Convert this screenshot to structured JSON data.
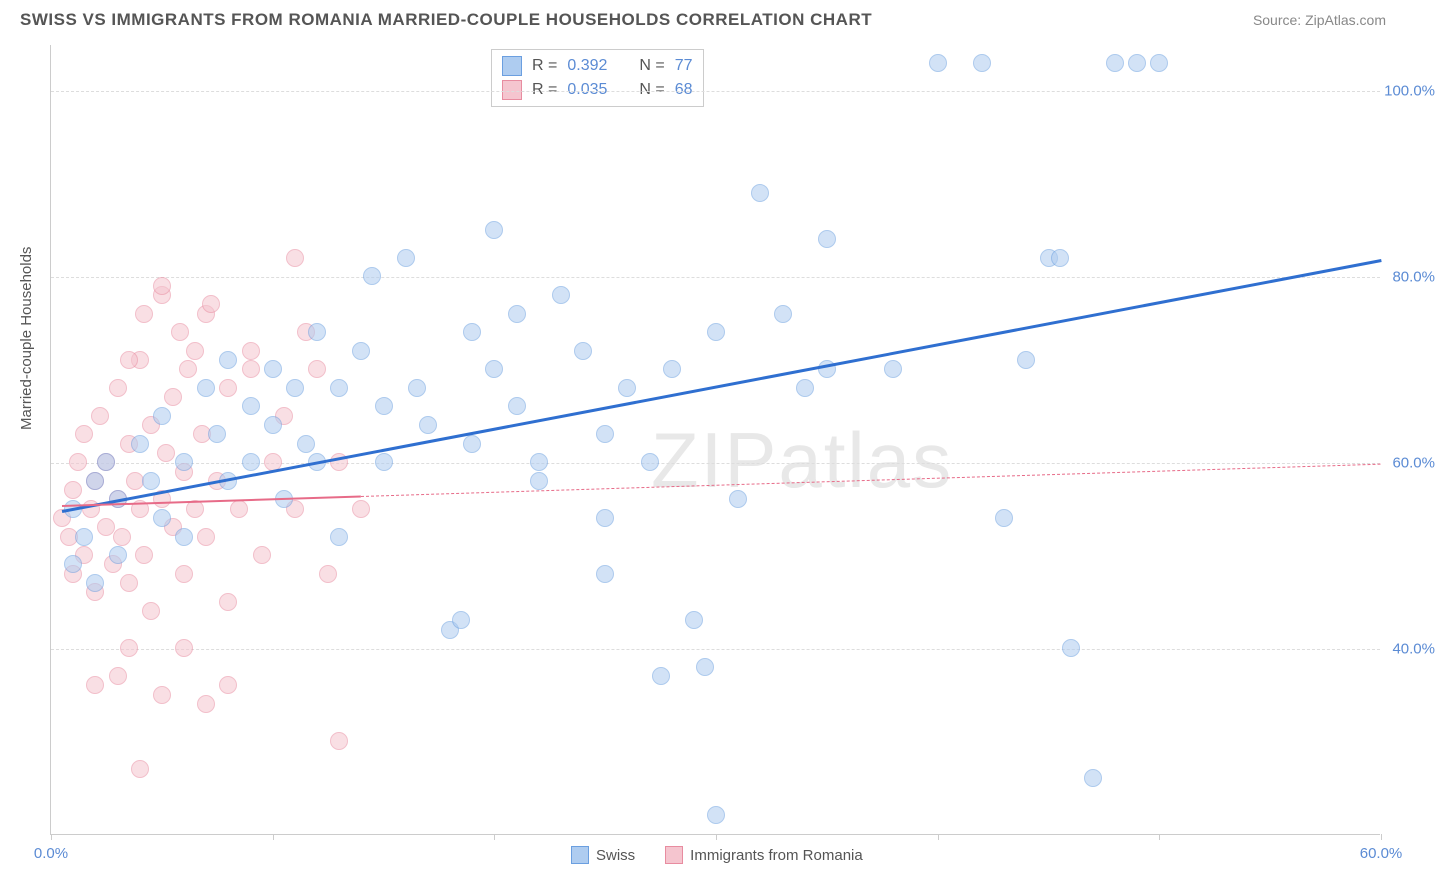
{
  "title": "SWISS VS IMMIGRANTS FROM ROMANIA MARRIED-COUPLE HOUSEHOLDS CORRELATION CHART",
  "source": "Source: ZipAtlas.com",
  "ylabel": "Married-couple Households",
  "watermark": "ZIPatlas",
  "chart": {
    "type": "scatter",
    "background_color": "#ffffff",
    "grid_color": "#dddddd",
    "border_color": "#cccccc",
    "xlim": [
      0,
      60
    ],
    "ylim": [
      20,
      105
    ],
    "x_ticks": [
      0,
      10,
      20,
      30,
      40,
      50,
      60
    ],
    "x_tick_labels": {
      "0": "0.0%",
      "60": "60.0%"
    },
    "y_gridlines": [
      40,
      60,
      80,
      100
    ],
    "y_tick_labels": [
      "40.0%",
      "60.0%",
      "80.0%",
      "100.0%"
    ],
    "tick_label_color": "#5b8bd4",
    "axis_label_color": "#555555",
    "axis_label_fontsize": 15,
    "tick_fontsize": 15,
    "marker_radius": 9,
    "marker_opacity": 0.55,
    "series": [
      {
        "name": "Swiss",
        "fill": "#aeccf0",
        "stroke": "#6b9fe0",
        "R": "0.392",
        "N": "77",
        "trend": {
          "x1": 0.5,
          "y1": 55,
          "x2": 60,
          "y2": 82,
          "color": "#2f6fd0",
          "width": 2.5,
          "solid_until_x": 60
        },
        "points": [
          [
            1,
            55
          ],
          [
            1,
            49
          ],
          [
            1.5,
            52
          ],
          [
            2,
            58
          ],
          [
            2,
            47
          ],
          [
            2.5,
            60
          ],
          [
            3,
            56
          ],
          [
            3,
            50
          ],
          [
            4,
            62
          ],
          [
            4.5,
            58
          ],
          [
            5,
            54
          ],
          [
            5,
            65
          ],
          [
            6,
            60
          ],
          [
            6,
            52
          ],
          [
            7,
            68
          ],
          [
            7.5,
            63
          ],
          [
            8,
            58
          ],
          [
            8,
            71
          ],
          [
            9,
            66
          ],
          [
            9,
            60
          ],
          [
            10,
            70
          ],
          [
            10,
            64
          ],
          [
            10.5,
            56
          ],
          [
            11,
            68
          ],
          [
            11.5,
            62
          ],
          [
            12,
            74
          ],
          [
            12,
            60
          ],
          [
            13,
            68
          ],
          [
            13,
            52
          ],
          [
            14,
            72
          ],
          [
            14.5,
            80
          ],
          [
            15,
            66
          ],
          [
            15,
            60
          ],
          [
            16,
            82
          ],
          [
            16.5,
            68
          ],
          [
            17,
            64
          ],
          [
            18,
            42
          ],
          [
            18.5,
            43
          ],
          [
            19,
            74
          ],
          [
            19,
            62
          ],
          [
            20,
            70
          ],
          [
            20,
            85
          ],
          [
            21,
            76
          ],
          [
            21,
            66
          ],
          [
            22,
            60
          ],
          [
            22,
            58
          ],
          [
            23,
            78
          ],
          [
            24,
            72
          ],
          [
            25,
            63
          ],
          [
            25,
            54
          ],
          [
            25,
            48
          ],
          [
            26,
            68
          ],
          [
            27,
            60
          ],
          [
            27.5,
            37
          ],
          [
            28,
            70
          ],
          [
            29,
            43
          ],
          [
            29.5,
            38
          ],
          [
            30,
            74
          ],
          [
            30,
            22
          ],
          [
            31,
            56
          ],
          [
            32,
            89
          ],
          [
            33,
            76
          ],
          [
            34,
            68
          ],
          [
            35,
            70
          ],
          [
            35,
            84
          ],
          [
            38,
            70
          ],
          [
            40,
            103
          ],
          [
            42,
            103
          ],
          [
            43,
            54
          ],
          [
            44,
            71
          ],
          [
            45,
            82
          ],
          [
            45.5,
            82
          ],
          [
            46,
            40
          ],
          [
            47,
            26
          ],
          [
            48,
            103
          ],
          [
            49,
            103
          ],
          [
            50,
            103
          ]
        ]
      },
      {
        "name": "Immigrants from Romania",
        "fill": "#f5c5cf",
        "stroke": "#e88ca0",
        "R": "0.035",
        "N": "68",
        "trend": {
          "x1": 0.5,
          "y1": 55.5,
          "x2": 60,
          "y2": 60,
          "color": "#e76b88",
          "width": 2.2,
          "solid_until_x": 14
        },
        "points": [
          [
            0.5,
            54
          ],
          [
            0.8,
            52
          ],
          [
            1,
            48
          ],
          [
            1,
            57
          ],
          [
            1.2,
            60
          ],
          [
            1.5,
            50
          ],
          [
            1.5,
            63
          ],
          [
            1.8,
            55
          ],
          [
            2,
            58
          ],
          [
            2,
            46
          ],
          [
            2.2,
            65
          ],
          [
            2.5,
            53
          ],
          [
            2.5,
            60
          ],
          [
            2.8,
            49
          ],
          [
            3,
            56
          ],
          [
            3,
            68
          ],
          [
            3.2,
            52
          ],
          [
            3.5,
            62
          ],
          [
            3.5,
            47
          ],
          [
            3.8,
            58
          ],
          [
            4,
            55
          ],
          [
            4,
            71
          ],
          [
            4.2,
            50
          ],
          [
            4.5,
            64
          ],
          [
            4.5,
            44
          ],
          [
            5,
            78
          ],
          [
            5,
            56
          ],
          [
            5,
            79
          ],
          [
            5.2,
            61
          ],
          [
            5.5,
            53
          ],
          [
            5.5,
            67
          ],
          [
            6,
            59
          ],
          [
            6,
            48
          ],
          [
            6.2,
            70
          ],
          [
            6.5,
            55
          ],
          [
            6.8,
            63
          ],
          [
            7,
            76
          ],
          [
            7,
            52
          ],
          [
            7.5,
            58
          ],
          [
            8,
            68
          ],
          [
            8,
            45
          ],
          [
            8.5,
            55
          ],
          [
            9,
            72
          ],
          [
            9.5,
            50
          ],
          [
            10,
            60
          ],
          [
            10.5,
            65
          ],
          [
            11,
            82
          ],
          [
            11,
            55
          ],
          [
            12,
            70
          ],
          [
            12.5,
            48
          ],
          [
            13,
            60
          ],
          [
            14,
            55
          ],
          [
            2,
            36
          ],
          [
            3,
            37
          ],
          [
            3.5,
            40
          ],
          [
            4,
            27
          ],
          [
            5,
            35
          ],
          [
            6,
            40
          ],
          [
            7,
            34
          ],
          [
            8,
            36
          ],
          [
            13,
            30
          ],
          [
            3.5,
            71
          ],
          [
            4.2,
            76
          ],
          [
            5.8,
            74
          ],
          [
            6.5,
            72
          ],
          [
            7.2,
            77
          ],
          [
            9,
            70
          ],
          [
            11.5,
            74
          ]
        ]
      }
    ]
  },
  "r_legend": {
    "rows": [
      {
        "fill": "#aeccf0",
        "stroke": "#6b9fe0",
        "r_label": "R  =",
        "r_val": "0.392",
        "n_label": "N  =",
        "n_val": "77"
      },
      {
        "fill": "#f5c5cf",
        "stroke": "#e88ca0",
        "r_label": "R  =",
        "r_val": "0.035",
        "n_label": "N  =",
        "n_val": "68"
      }
    ]
  },
  "bottom_legend": [
    {
      "fill": "#aeccf0",
      "stroke": "#6b9fe0",
      "label": "Swiss"
    },
    {
      "fill": "#f5c5cf",
      "stroke": "#e88ca0",
      "label": "Immigrants from Romania"
    }
  ]
}
